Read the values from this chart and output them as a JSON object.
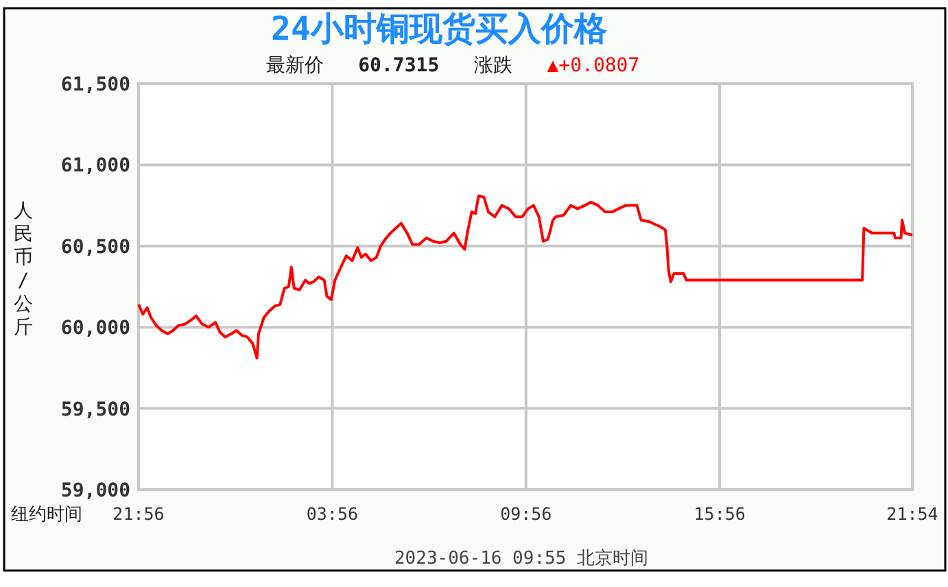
{
  "chart_data": {
    "type": "line",
    "title": "24小时铜现货买入价格",
    "subtitle": "最新价 60.7315 涨跌 ▲+0.0807",
    "ylabel": "人民币/公斤",
    "annotations": [
      "纽约时间",
      "2023-06-16 09:55 北京时间"
    ],
    "xlim": [
      "2023-06-15T21:56",
      "2023-06-16T21:54"
    ],
    "xticks": [
      {
        "value": "2023-06-15T21:56",
        "label": "21:56"
      },
      {
        "value": "2023-06-16T03:56",
        "label": "03:56"
      },
      {
        "value": "2023-06-16T09:56",
        "label": "09:56"
      },
      {
        "value": "2023-06-16T15:56",
        "label": "15:56"
      },
      {
        "value": "2023-06-16T21:54",
        "label": "21:54"
      }
    ],
    "ylim": [
      59000,
      61500
    ],
    "yticks": [
      {
        "value": 59000,
        "label": "59,000"
      },
      {
        "value": 59500,
        "label": "59,500"
      },
      {
        "value": 60000,
        "label": "60,000"
      },
      {
        "value": 60500,
        "label": "60,500"
      },
      {
        "value": 61000,
        "label": "61,000"
      },
      {
        "value": 61500,
        "label": "61,500"
      }
    ],
    "grid": true,
    "line_style": "solid",
    "marker": "none",
    "series": [
      {
        "color": "#ff0000",
        "x": [
          "2023-06-15T21:56",
          "2023-06-15T22:04",
          "2023-06-15T22:12",
          "2023-06-15T22:19",
          "2023-06-15T22:29",
          "2023-06-15T22:39",
          "2023-06-15T22:50",
          "2023-06-15T23:00",
          "2023-06-15T23:10",
          "2023-06-15T23:23",
          "2023-06-15T23:36",
          "2023-06-15T23:43",
          "2023-06-15T23:54",
          "2023-06-16T00:06",
          "2023-06-16T00:19",
          "2023-06-16T00:27",
          "2023-06-16T00:37",
          "2023-06-16T00:48",
          "2023-06-16T00:58",
          "2023-06-16T01:08",
          "2023-06-16T01:18",
          "2023-06-16T01:28",
          "2023-06-16T01:36",
          "2023-06-16T01:39",
          "2023-06-16T01:49",
          "2023-06-16T01:59",
          "2023-06-16T02:09",
          "2023-06-16T02:19",
          "2023-06-16T02:27",
          "2023-06-16T02:35",
          "2023-06-16T02:40",
          "2023-06-16T02:45",
          "2023-06-16T02:55",
          "2023-06-16T03:06",
          "2023-06-16T03:13",
          "2023-06-16T03:21",
          "2023-06-16T03:31",
          "2023-06-16T03:41",
          "2023-06-16T03:46",
          "2023-06-16T03:54",
          "2023-06-16T04:01",
          "2023-06-16T04:12",
          "2023-06-16T04:22",
          "2023-06-16T04:33",
          "2023-06-16T04:43",
          "2023-06-16T04:50",
          "2023-06-16T04:58",
          "2023-06-16T05:08",
          "2023-06-16T05:18",
          "2023-06-16T05:26",
          "2023-06-16T05:34",
          "2023-06-16T05:44",
          "2023-06-16T05:54",
          "2023-06-16T06:04",
          "2023-06-16T06:15",
          "2023-06-16T06:25",
          "2023-06-16T06:37",
          "2023-06-16T06:51",
          "2023-06-16T07:03",
          "2023-06-16T07:16",
          "2023-06-16T07:28",
          "2023-06-16T07:42",
          "2023-06-16T07:54",
          "2023-06-16T08:02",
          "2023-06-16T08:07",
          "2023-06-16T08:15",
          "2023-06-16T08:22",
          "2023-06-16T08:28",
          "2023-06-16T08:38",
          "2023-06-16T08:46",
          "2023-06-16T08:58",
          "2023-06-16T09:11",
          "2023-06-16T09:24",
          "2023-06-16T09:37",
          "2023-06-16T09:49",
          "2023-06-16T10:00",
          "2023-06-16T10:10",
          "2023-06-16T10:20",
          "2023-06-16T10:28",
          "2023-06-16T10:36",
          "2023-06-16T10:40",
          "2023-06-16T10:46",
          "2023-06-16T10:51",
          "2023-06-16T11:06",
          "2023-06-16T11:19",
          "2023-06-16T11:32",
          "2023-06-16T11:45",
          "2023-06-16T11:57",
          "2023-06-16T12:10",
          "2023-06-16T12:23",
          "2023-06-16T12:36",
          "2023-06-16T12:48",
          "2023-06-16T13:01",
          "2023-06-16T13:14",
          "2023-06-16T13:22",
          "2023-06-16T13:30",
          "2023-06-16T13:45",
          "2023-06-16T13:58",
          "2023-06-16T14:05",
          "2023-06-16T14:15",
          "2023-06-16T14:18",
          "2023-06-16T14:21",
          "2023-06-16T14:25",
          "2023-06-16T14:31",
          "2023-06-16T14:49",
          "2023-06-16T14:54",
          "2023-06-16T20:21",
          "2023-06-16T20:24",
          "2023-06-16T20:39",
          "2023-06-16T21:20",
          "2023-06-16T21:22",
          "2023-06-16T21:33",
          "2023-06-16T21:35",
          "2023-06-16T21:40",
          "2023-06-16T21:51",
          "2023-06-16T21:54"
        ],
        "values": [
          60140,
          60080,
          60120,
          60060,
          60010,
          59980,
          59960,
          59980,
          60010,
          60020,
          60050,
          60070,
          60020,
          60000,
          60030,
          59970,
          59940,
          59960,
          59980,
          59950,
          59940,
          59900,
          59810,
          59960,
          60060,
          60100,
          60130,
          60140,
          60240,
          60250,
          60370,
          60240,
          60230,
          60290,
          60270,
          60280,
          60310,
          60290,
          60190,
          60170,
          60290,
          60370,
          60440,
          60410,
          60490,
          60430,
          60450,
          60410,
          60430,
          60500,
          60540,
          60580,
          60610,
          60640,
          60580,
          60510,
          60510,
          60550,
          60530,
          60520,
          60530,
          60580,
          60510,
          60480,
          60580,
          60710,
          60700,
          60810,
          60800,
          60710,
          60680,
          60750,
          60730,
          60680,
          60680,
          60730,
          60750,
          60680,
          60530,
          60540,
          60580,
          60660,
          60680,
          60690,
          60750,
          60730,
          60750,
          60770,
          60750,
          60710,
          60710,
          60730,
          60750,
          60750,
          60750,
          60660,
          60650,
          60630,
          60620,
          60600,
          60500,
          60350,
          60280,
          60330,
          60330,
          60290,
          60290,
          60610,
          60580,
          60580,
          60550,
          60550,
          60660,
          60580,
          60570,
          60570
        ]
      }
    ]
  }
}
